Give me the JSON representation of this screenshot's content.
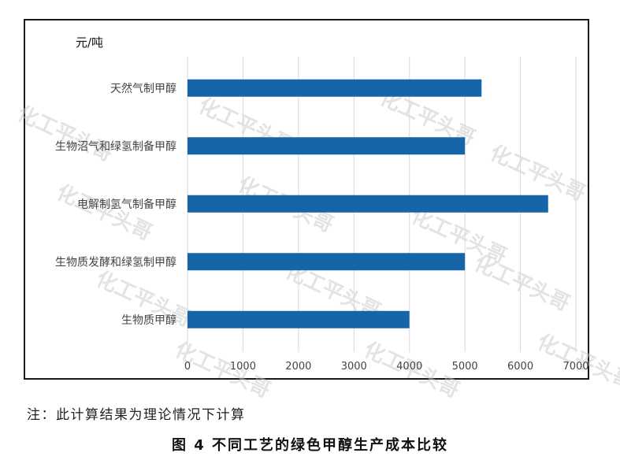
{
  "chart_data": {
    "type": "bar",
    "orientation": "horizontal",
    "ylabel": "元/吨",
    "categories": [
      "天然气制甲醇",
      "生物沼气和绿氢制备甲醇",
      "电解制氢气制备甲醇",
      "生物质发酵和绿氢制甲醇",
      "生物质甲醇"
    ],
    "values": [
      5300,
      5000,
      6500,
      5000,
      4000
    ],
    "xlim": [
      0,
      7000
    ],
    "xticks": [
      0,
      1000,
      2000,
      3000,
      4000,
      5000,
      6000,
      7000
    ],
    "grid": true,
    "bar_color": "#1565a8"
  },
  "watermark": "化工平头哥",
  "note": "注：此计算结果为理论情况下计算",
  "figure_title": "图 4  不同工艺的绿色甲醇生产成本比较"
}
